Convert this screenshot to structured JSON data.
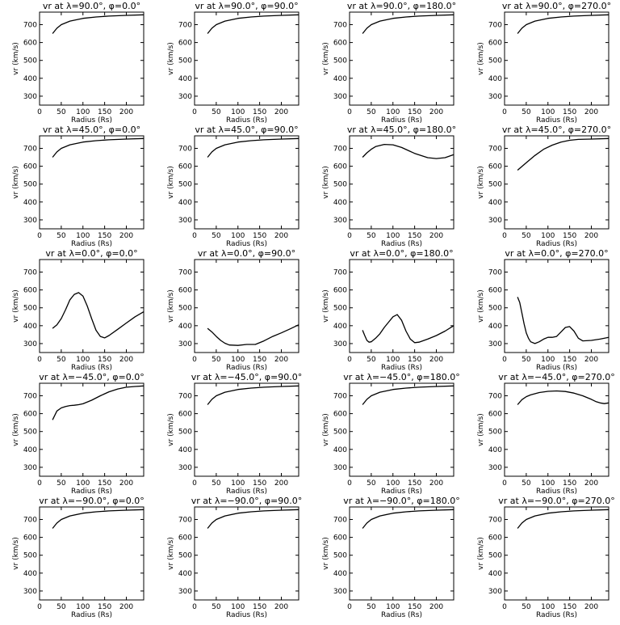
{
  "figure": {
    "background": "#ffffff",
    "line_color": "#000000"
  },
  "chart_data": [
    {
      "type": "line",
      "title": "vr at λ=90.0°, φ=0.0°",
      "xlabel": "Radius (Rs)",
      "ylabel": "vr (km/s)",
      "xlim": [
        0,
        240
      ],
      "ylim": [
        250,
        770
      ],
      "x_ticks": [
        0,
        50,
        100,
        150,
        200
      ],
      "y_ticks": [
        300,
        400,
        500,
        600,
        700
      ],
      "series": [
        {
          "x": [
            30,
            40,
            50,
            70,
            100,
            130,
            160,
            200,
            240
          ],
          "y": [
            650,
            680,
            700,
            720,
            735,
            743,
            748,
            752,
            755
          ]
        }
      ]
    },
    {
      "type": "line",
      "title": "vr at λ=90.0°, φ=90.0°",
      "xlabel": "Radius (Rs)",
      "ylabel": "vr (km/s)",
      "xlim": [
        0,
        240
      ],
      "ylim": [
        250,
        770
      ],
      "x_ticks": [
        0,
        50,
        100,
        150,
        200
      ],
      "y_ticks": [
        300,
        400,
        500,
        600,
        700
      ],
      "series": [
        {
          "x": [
            30,
            40,
            50,
            70,
            100,
            130,
            160,
            200,
            240
          ],
          "y": [
            650,
            680,
            700,
            720,
            735,
            743,
            748,
            752,
            755
          ]
        }
      ]
    },
    {
      "type": "line",
      "title": "vr at λ=90.0°, φ=180.0°",
      "xlabel": "Radius (Rs)",
      "ylabel": "vr (km/s)",
      "xlim": [
        0,
        240
      ],
      "ylim": [
        250,
        770
      ],
      "x_ticks": [
        0,
        50,
        100,
        150,
        200
      ],
      "y_ticks": [
        300,
        400,
        500,
        600,
        700
      ],
      "series": [
        {
          "x": [
            30,
            40,
            50,
            70,
            100,
            130,
            160,
            200,
            240
          ],
          "y": [
            650,
            680,
            700,
            720,
            735,
            743,
            748,
            752,
            755
          ]
        }
      ]
    },
    {
      "type": "line",
      "title": "vr at λ=90.0°, φ=270.0°",
      "xlabel": "Radius (Rs)",
      "ylabel": "vr (km/s)",
      "xlim": [
        0,
        240
      ],
      "ylim": [
        250,
        770
      ],
      "x_ticks": [
        0,
        50,
        100,
        150,
        200
      ],
      "y_ticks": [
        300,
        400,
        500,
        600,
        700
      ],
      "series": [
        {
          "x": [
            30,
            40,
            50,
            70,
            100,
            130,
            160,
            200,
            240
          ],
          "y": [
            650,
            680,
            700,
            720,
            735,
            743,
            748,
            752,
            755
          ]
        }
      ]
    },
    {
      "type": "line",
      "title": "vr at λ=45.0°, φ=0.0°",
      "xlabel": "Radius (Rs)",
      "ylabel": "vr (km/s)",
      "xlim": [
        0,
        240
      ],
      "ylim": [
        250,
        770
      ],
      "x_ticks": [
        0,
        50,
        100,
        150,
        200
      ],
      "y_ticks": [
        300,
        400,
        500,
        600,
        700
      ],
      "series": [
        {
          "x": [
            30,
            40,
            50,
            70,
            100,
            130,
            160,
            200,
            240
          ],
          "y": [
            650,
            680,
            700,
            720,
            735,
            743,
            748,
            752,
            755
          ]
        }
      ]
    },
    {
      "type": "line",
      "title": "vr at λ=45.0°, φ=90.0°",
      "xlabel": "Radius (Rs)",
      "ylabel": "vr (km/s)",
      "xlim": [
        0,
        240
      ],
      "ylim": [
        250,
        770
      ],
      "x_ticks": [
        0,
        50,
        100,
        150,
        200
      ],
      "y_ticks": [
        300,
        400,
        500,
        600,
        700
      ],
      "series": [
        {
          "x": [
            30,
            40,
            50,
            70,
            100,
            130,
            160,
            200,
            240
          ],
          "y": [
            650,
            680,
            700,
            720,
            735,
            743,
            748,
            752,
            755
          ]
        }
      ]
    },
    {
      "type": "line",
      "title": "vr at λ=45.0°, φ=180.0°",
      "xlabel": "Radius (Rs)",
      "ylabel": "vr (km/s)",
      "xlim": [
        0,
        240
      ],
      "ylim": [
        250,
        770
      ],
      "x_ticks": [
        0,
        50,
        100,
        150,
        200
      ],
      "y_ticks": [
        300,
        400,
        500,
        600,
        700
      ],
      "series": [
        {
          "x": [
            30,
            40,
            50,
            60,
            80,
            100,
            120,
            150,
            180,
            200,
            220,
            240
          ],
          "y": [
            650,
            675,
            695,
            710,
            722,
            720,
            705,
            672,
            648,
            643,
            648,
            665
          ]
        }
      ]
    },
    {
      "type": "line",
      "title": "vr at λ=45.0°, φ=270.0°",
      "xlabel": "Radius (Rs)",
      "ylabel": "vr (km/s)",
      "xlim": [
        0,
        240
      ],
      "ylim": [
        250,
        770
      ],
      "x_ticks": [
        0,
        50,
        100,
        150,
        200
      ],
      "y_ticks": [
        300,
        400,
        500,
        600,
        700
      ],
      "series": [
        {
          "x": [
            30,
            50,
            70,
            90,
            110,
            130,
            150,
            170,
            200,
            240
          ],
          "y": [
            578,
            620,
            660,
            695,
            718,
            735,
            745,
            750,
            752,
            755
          ]
        }
      ]
    },
    {
      "type": "line",
      "title": "vr at λ=0.0°, φ=0.0°",
      "xlabel": "Radius (Rs)",
      "ylabel": "vr (km/s)",
      "xlim": [
        0,
        240
      ],
      "ylim": [
        250,
        770
      ],
      "x_ticks": [
        0,
        50,
        100,
        150,
        200
      ],
      "y_ticks": [
        300,
        400,
        500,
        600,
        700
      ],
      "series": [
        {
          "x": [
            30,
            40,
            50,
            60,
            70,
            80,
            90,
            100,
            110,
            120,
            130,
            140,
            150,
            160,
            180,
            200,
            220,
            240
          ],
          "y": [
            385,
            405,
            440,
            490,
            545,
            575,
            585,
            565,
            510,
            440,
            375,
            340,
            332,
            345,
            380,
            415,
            450,
            478
          ]
        }
      ]
    },
    {
      "type": "line",
      "title": "vr at λ=0.0°, φ=90.0°",
      "xlabel": "Radius (Rs)",
      "ylabel": "vr (km/s)",
      "xlim": [
        0,
        240
      ],
      "ylim": [
        250,
        770
      ],
      "x_ticks": [
        0,
        50,
        100,
        150,
        200
      ],
      "y_ticks": [
        300,
        400,
        500,
        600,
        700
      ],
      "series": [
        {
          "x": [
            30,
            40,
            50,
            60,
            70,
            80,
            100,
            120,
            140,
            160,
            180,
            200,
            220,
            240
          ],
          "y": [
            385,
            365,
            340,
            318,
            302,
            292,
            290,
            295,
            295,
            315,
            340,
            360,
            382,
            405
          ]
        }
      ]
    },
    {
      "type": "line",
      "title": "vr at λ=0.0°, φ=180.0°",
      "xlabel": "Radius (Rs)",
      "ylabel": "vr (km/s)",
      "xlim": [
        0,
        240
      ],
      "ylim": [
        250,
        770
      ],
      "x_ticks": [
        0,
        50,
        100,
        150,
        200
      ],
      "y_ticks": [
        300,
        400,
        500,
        600,
        700
      ],
      "series": [
        {
          "x": [
            30,
            35,
            40,
            45,
            50,
            60,
            70,
            80,
            90,
            100,
            110,
            120,
            130,
            140,
            150,
            160,
            180,
            200,
            220,
            240
          ],
          "y": [
            375,
            345,
            318,
            308,
            310,
            330,
            355,
            390,
            420,
            450,
            462,
            430,
            370,
            325,
            305,
            308,
            325,
            345,
            370,
            400
          ]
        }
      ]
    },
    {
      "type": "line",
      "title": "vr at λ=0.0°, φ=270.0°",
      "xlabel": "Radius (Rs)",
      "ylabel": "vr (km/s)",
      "xlim": [
        0,
        240
      ],
      "ylim": [
        250,
        770
      ],
      "x_ticks": [
        0,
        50,
        100,
        150,
        200
      ],
      "y_ticks": [
        300,
        400,
        500,
        600,
        700
      ],
      "series": [
        {
          "x": [
            30,
            35,
            40,
            45,
            50,
            55,
            60,
            70,
            80,
            90,
            100,
            110,
            120,
            130,
            140,
            150,
            160,
            170,
            180,
            200,
            220,
            240
          ],
          "y": [
            560,
            530,
            470,
            410,
            360,
            330,
            310,
            300,
            310,
            325,
            335,
            335,
            340,
            365,
            390,
            395,
            370,
            330,
            315,
            318,
            325,
            335
          ]
        }
      ]
    },
    {
      "type": "line",
      "title": "vr at λ=−45.0°, φ=0.0°",
      "xlabel": "Radius (Rs)",
      "ylabel": "vr (km/s)",
      "xlim": [
        0,
        240
      ],
      "ylim": [
        250,
        770
      ],
      "x_ticks": [
        0,
        50,
        100,
        150,
        200
      ],
      "y_ticks": [
        300,
        400,
        500,
        600,
        700
      ],
      "series": [
        {
          "x": [
            30,
            35,
            40,
            50,
            60,
            70,
            80,
            90,
            100,
            120,
            140,
            160,
            180,
            200,
            220,
            240
          ],
          "y": [
            565,
            590,
            615,
            632,
            640,
            645,
            647,
            650,
            655,
            675,
            700,
            722,
            738,
            748,
            752,
            755
          ]
        }
      ]
    },
    {
      "type": "line",
      "title": "vr at λ=−45.0°, φ=90.0°",
      "xlabel": "Radius (Rs)",
      "ylabel": "vr (km/s)",
      "xlim": [
        0,
        240
      ],
      "ylim": [
        250,
        770
      ],
      "x_ticks": [
        0,
        50,
        100,
        150,
        200
      ],
      "y_ticks": [
        300,
        400,
        500,
        600,
        700
      ],
      "series": [
        {
          "x": [
            30,
            40,
            50,
            70,
            100,
            130,
            160,
            200,
            240
          ],
          "y": [
            650,
            680,
            700,
            720,
            735,
            743,
            748,
            752,
            755
          ]
        }
      ]
    },
    {
      "type": "line",
      "title": "vr at λ=−45.0°, φ=180.0°",
      "xlabel": "Radius (Rs)",
      "ylabel": "vr (km/s)",
      "xlim": [
        0,
        240
      ],
      "ylim": [
        250,
        770
      ],
      "x_ticks": [
        0,
        50,
        100,
        150,
        200
      ],
      "y_ticks": [
        300,
        400,
        500,
        600,
        700
      ],
      "series": [
        {
          "x": [
            30,
            40,
            50,
            70,
            100,
            130,
            160,
            200,
            240
          ],
          "y": [
            650,
            680,
            700,
            720,
            735,
            743,
            748,
            752,
            755
          ]
        }
      ]
    },
    {
      "type": "line",
      "title": "vr at λ=−45.0°, φ=270.0°",
      "xlabel": "Radius (Rs)",
      "ylabel": "vr (km/s)",
      "xlim": [
        0,
        240
      ],
      "ylim": [
        250,
        770
      ],
      "x_ticks": [
        0,
        50,
        100,
        150,
        200
      ],
      "y_ticks": [
        300,
        400,
        500,
        600,
        700
      ],
      "series": [
        {
          "x": [
            30,
            40,
            50,
            60,
            80,
            100,
            120,
            140,
            160,
            180,
            200,
            210,
            220,
            230,
            240
          ],
          "y": [
            650,
            678,
            695,
            705,
            718,
            725,
            727,
            724,
            715,
            700,
            680,
            668,
            660,
            656,
            660
          ]
        }
      ]
    },
    {
      "type": "line",
      "title": "vr at λ=−90.0°, φ=0.0°",
      "xlabel": "Radius (Rs)",
      "ylabel": "vr (km/s)",
      "xlim": [
        0,
        240
      ],
      "ylim": [
        250,
        770
      ],
      "x_ticks": [
        0,
        50,
        100,
        150,
        200
      ],
      "y_ticks": [
        300,
        400,
        500,
        600,
        700
      ],
      "series": [
        {
          "x": [
            30,
            40,
            50,
            70,
            100,
            130,
            160,
            200,
            240
          ],
          "y": [
            650,
            680,
            700,
            720,
            735,
            743,
            748,
            752,
            755
          ]
        }
      ]
    },
    {
      "type": "line",
      "title": "vr at λ=−90.0°, φ=90.0°",
      "xlabel": "Radius (Rs)",
      "ylabel": "vr (km/s)",
      "xlim": [
        0,
        240
      ],
      "ylim": [
        250,
        770
      ],
      "x_ticks": [
        0,
        50,
        100,
        150,
        200
      ],
      "y_ticks": [
        300,
        400,
        500,
        600,
        700
      ],
      "series": [
        {
          "x": [
            30,
            40,
            50,
            70,
            100,
            130,
            160,
            200,
            240
          ],
          "y": [
            650,
            680,
            700,
            720,
            735,
            743,
            748,
            752,
            755
          ]
        }
      ]
    },
    {
      "type": "line",
      "title": "vr at λ=−90.0°, φ=180.0°",
      "xlabel": "Radius (Rs)",
      "ylabel": "vr (km/s)",
      "xlim": [
        0,
        240
      ],
      "ylim": [
        250,
        770
      ],
      "x_ticks": [
        0,
        50,
        100,
        150,
        200
      ],
      "y_ticks": [
        300,
        400,
        500,
        600,
        700
      ],
      "series": [
        {
          "x": [
            30,
            40,
            50,
            70,
            100,
            130,
            160,
            200,
            240
          ],
          "y": [
            650,
            680,
            700,
            720,
            735,
            743,
            748,
            752,
            755
          ]
        }
      ]
    },
    {
      "type": "line",
      "title": "vr at λ=−90.0°, φ=270.0°",
      "xlabel": "Radius (Rs)",
      "ylabel": "vr (km/s)",
      "xlim": [
        0,
        240
      ],
      "ylim": [
        250,
        770
      ],
      "x_ticks": [
        0,
        50,
        100,
        150,
        200
      ],
      "y_ticks": [
        300,
        400,
        500,
        600,
        700
      ],
      "series": [
        {
          "x": [
            30,
            40,
            50,
            70,
            100,
            130,
            160,
            200,
            240
          ],
          "y": [
            650,
            680,
            700,
            720,
            735,
            743,
            748,
            752,
            755
          ]
        }
      ]
    }
  ]
}
